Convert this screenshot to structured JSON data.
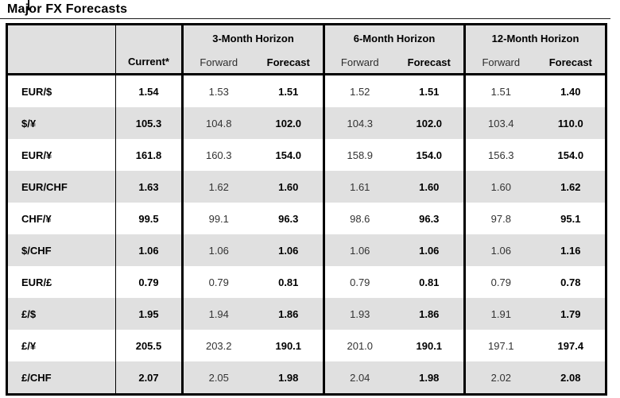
{
  "title": "Major FX Forecasts",
  "colors": {
    "stripe": "#e0e0e0",
    "header_bg": "#e0e0e0",
    "border": "#000000"
  },
  "table": {
    "header": {
      "pair_column": "",
      "current": "Current*",
      "groups": [
        {
          "label": "3-Month Horizon",
          "forward": "Forward",
          "forecast": "Forecast"
        },
        {
          "label": "6-Month Horizon",
          "forward": "Forward",
          "forecast": "Forecast"
        },
        {
          "label": "12-Month Horizon",
          "forward": "Forward",
          "forecast": "Forecast"
        }
      ]
    },
    "rows": [
      {
        "pair": "EUR/$",
        "current": "1.54",
        "fwd3": "1.53",
        "fc3": "1.51",
        "fwd6": "1.52",
        "fc6": "1.51",
        "fwd12": "1.51",
        "fc12": "1.40"
      },
      {
        "pair": "$/¥",
        "current": "105.3",
        "fwd3": "104.8",
        "fc3": "102.0",
        "fwd6": "104.3",
        "fc6": "102.0",
        "fwd12": "103.4",
        "fc12": "110.0"
      },
      {
        "pair": "EUR/¥",
        "current": "161.8",
        "fwd3": "160.3",
        "fc3": "154.0",
        "fwd6": "158.9",
        "fc6": "154.0",
        "fwd12": "156.3",
        "fc12": "154.0"
      },
      {
        "pair": "EUR/CHF",
        "current": "1.63",
        "fwd3": "1.62",
        "fc3": "1.60",
        "fwd6": "1.61",
        "fc6": "1.60",
        "fwd12": "1.60",
        "fc12": "1.62"
      },
      {
        "pair": "CHF/¥",
        "current": "99.5",
        "fwd3": "99.1",
        "fc3": "96.3",
        "fwd6": "98.6",
        "fc6": "96.3",
        "fwd12": "97.8",
        "fc12": "95.1"
      },
      {
        "pair": "$/CHF",
        "current": "1.06",
        "fwd3": "1.06",
        "fc3": "1.06",
        "fwd6": "1.06",
        "fc6": "1.06",
        "fwd12": "1.06",
        "fc12": "1.16"
      },
      {
        "pair": "EUR/£",
        "current": "0.79",
        "fwd3": "0.79",
        "fc3": "0.81",
        "fwd6": "0.79",
        "fc6": "0.81",
        "fwd12": "0.79",
        "fc12": "0.78"
      },
      {
        "pair": "£/$",
        "current": "1.95",
        "fwd3": "1.94",
        "fc3": "1.86",
        "fwd6": "1.93",
        "fc6": "1.86",
        "fwd12": "1.91",
        "fc12": "1.79"
      },
      {
        "pair": "£/¥",
        "current": "205.5",
        "fwd3": "203.2",
        "fc3": "190.1",
        "fwd6": "201.0",
        "fc6": "190.1",
        "fwd12": "197.1",
        "fc12": "197.4"
      },
      {
        "pair": "£/CHF",
        "current": "2.07",
        "fwd3": "2.05",
        "fc3": "1.98",
        "fwd6": "2.04",
        "fc6": "1.98",
        "fwd12": "2.02",
        "fc12": "2.08"
      }
    ]
  }
}
